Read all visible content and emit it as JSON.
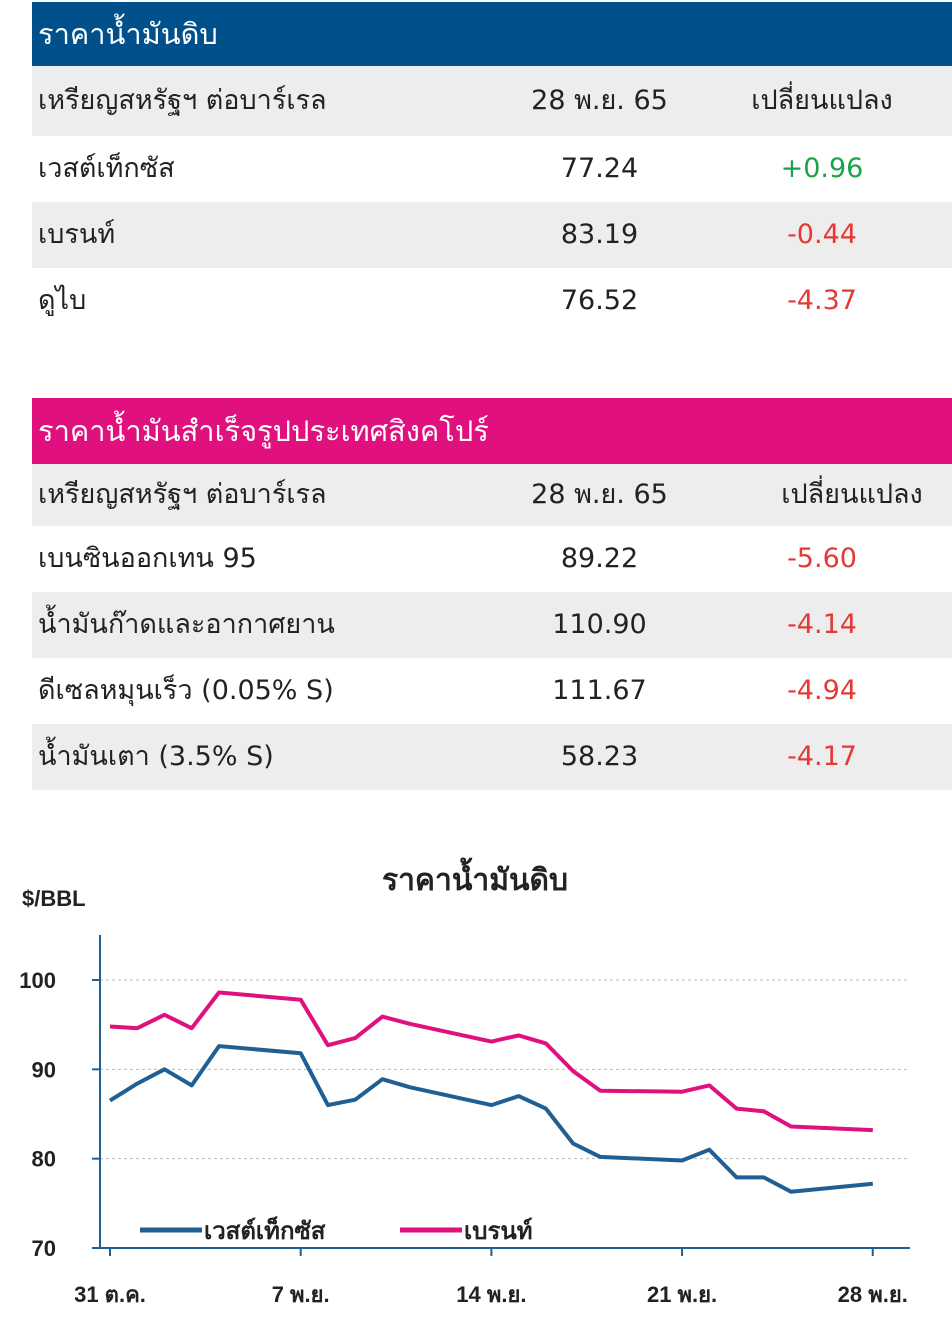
{
  "crude_table": {
    "title": "ราคาน้ำมันดิบ",
    "headers": [
      "เหรียญสหรัฐฯ ต่อบาร์เรล",
      "28 พ.ย. 65",
      "เปลี่ยนแปลง"
    ],
    "rows": [
      {
        "name": "เวสต์เท็กซัส",
        "price": "77.24",
        "change": "+0.96",
        "trend": "up"
      },
      {
        "name": "เบรนท์",
        "price": "83.19",
        "change": "-0.44",
        "trend": "down"
      },
      {
        "name": "ดูไบ",
        "price": "76.52",
        "change": "-4.37",
        "trend": "down"
      }
    ]
  },
  "sg_table": {
    "title": "ราคาน้ำมันสำเร็จรูปประเทศสิงคโปร์",
    "headers": [
      "เหรียญสหรัฐฯ ต่อบาร์เรล",
      "28 พ.ย. 65",
      "เปลี่ยนแปลง"
    ],
    "rows": [
      {
        "name": "เบนซินออกเทน 95",
        "price": "89.22",
        "change": "-5.60",
        "trend": "down"
      },
      {
        "name": "น้ำมันก๊าดและอากาศยาน",
        "price": "110.90",
        "change": "-4.14",
        "trend": "down"
      },
      {
        "name": "ดีเซลหมุนเร็ว (0.05% S)",
        "price": "111.67",
        "change": "-4.94",
        "trend": "down"
      },
      {
        "name": "น้ำมันเตา (3.5% S)",
        "price": "58.23",
        "change": "-4.17",
        "trend": "down"
      }
    ]
  },
  "colors": {
    "blue_header": "#00508c",
    "pink_header": "#e0117f",
    "wti": "#1f5f94",
    "brent": "#e0117f",
    "up": "#1aa34a",
    "down": "#e53935"
  },
  "chart_data": {
    "type": "line",
    "title": "ราคาน้ำมันดิบ",
    "ylabel": "$/BBL",
    "ylim": [
      70,
      100
    ],
    "yticks": [
      70,
      80,
      90,
      100
    ],
    "xlim": [
      1,
      30
    ],
    "x_tick_labels": [
      "31 ต.ค.",
      "7 พ.ย.",
      "14 พ.ย.",
      "21 พ.ย.",
      "28 พ.ย."
    ],
    "x_tick_positions": [
      1,
      8,
      15,
      22,
      29
    ],
    "grid": "horizontal dashed",
    "legend_position": "bottom-left",
    "series": [
      {
        "name": "เวสต์เท็กซัส",
        "color": "#1f5f94",
        "x": [
          1,
          2,
          3,
          4,
          5,
          8,
          9,
          10,
          11,
          12,
          15,
          16,
          17,
          18,
          19,
          22,
          23,
          24,
          25,
          26,
          29
        ],
        "y": [
          86.5,
          88.4,
          90.0,
          88.2,
          92.6,
          91.8,
          86.0,
          86.6,
          88.9,
          88.0,
          86.0,
          87.0,
          85.6,
          81.7,
          80.2,
          79.8,
          81.0,
          77.9,
          77.9,
          76.3,
          77.2
        ]
      },
      {
        "name": "เบรนท์",
        "color": "#e0117f",
        "x": [
          1,
          2,
          3,
          4,
          5,
          8,
          9,
          10,
          11,
          12,
          15,
          16,
          17,
          18,
          19,
          22,
          23,
          24,
          25,
          26,
          29
        ],
        "y": [
          94.8,
          94.6,
          96.1,
          94.6,
          98.6,
          97.8,
          92.7,
          93.5,
          95.9,
          95.1,
          93.1,
          93.8,
          92.9,
          89.8,
          87.6,
          87.5,
          88.2,
          85.6,
          85.3,
          83.6,
          83.2
        ]
      }
    ]
  }
}
